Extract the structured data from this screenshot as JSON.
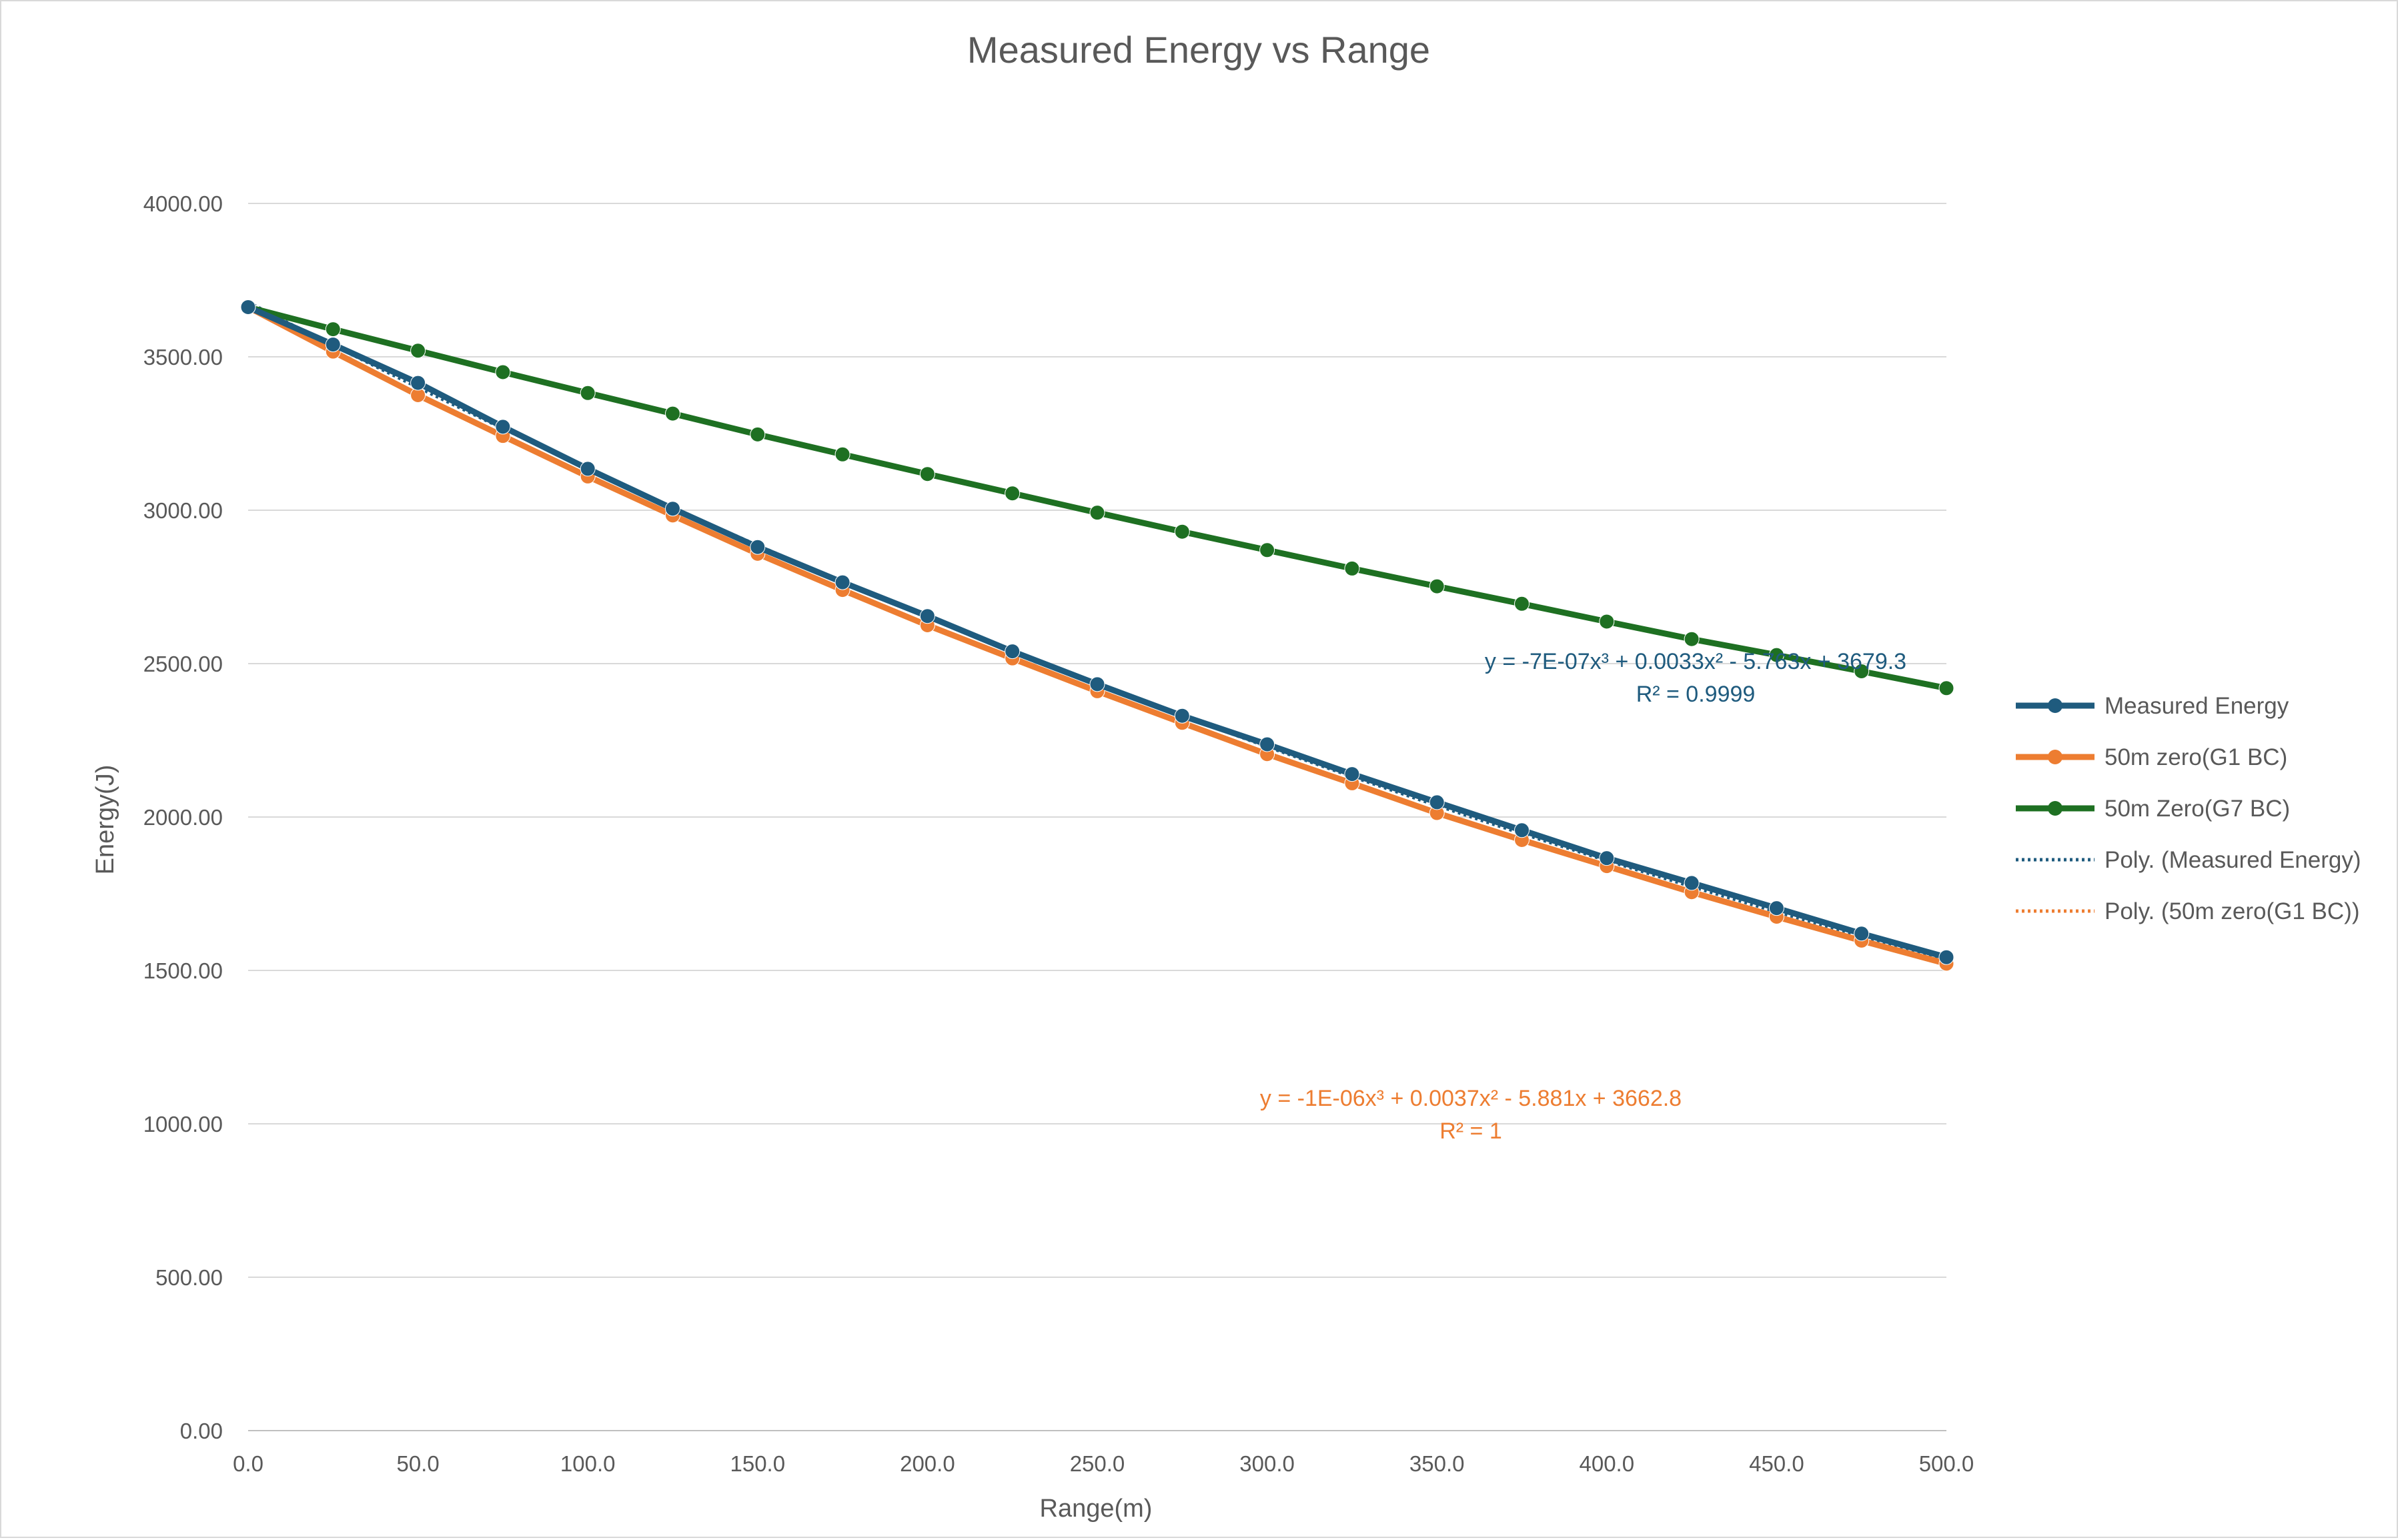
{
  "chart_data": {
    "type": "line",
    "title": "Measured Energy vs Range",
    "xlabel": "Range(m)",
    "ylabel": "Energy(J)",
    "xlim": [
      0,
      500
    ],
    "ylim": [
      0,
      4000
    ],
    "x_ticks": [
      "0.0",
      "50.0",
      "100.0",
      "150.0",
      "200.0",
      "250.0",
      "300.0",
      "350.0",
      "400.0",
      "450.0",
      "500.0"
    ],
    "y_ticks": [
      "0.00",
      "500.00",
      "1000.00",
      "1500.00",
      "2000.00",
      "2500.00",
      "3000.00",
      "3500.00",
      "4000.00"
    ],
    "grid": true,
    "legend_position": "right",
    "x": [
      0,
      25,
      50,
      75,
      100,
      125,
      150,
      175,
      200,
      225,
      250,
      275,
      300,
      325,
      350,
      375,
      400,
      425,
      450,
      475,
      500
    ],
    "series": [
      {
        "name": "Measured Energy",
        "color": "#1f5b7e",
        "values": [
          3662,
          3540,
          3415,
          3272,
          3135,
          3005,
          2880,
          2765,
          2655,
          2540,
          2433,
          2330,
          2237,
          2140,
          2048,
          1957,
          1866,
          1785,
          1703,
          1620,
          1543
        ]
      },
      {
        "name": "50m zero(G1 BC)",
        "color": "#ed7d31",
        "values": [
          3662,
          3517,
          3375,
          3242,
          3110,
          2983,
          2858,
          2740,
          2625,
          2517,
          2410,
          2307,
          2205,
          2110,
          2013,
          1925,
          1840,
          1755,
          1675,
          1597,
          1522
        ]
      },
      {
        "name": "50m Zero(G7 BC)",
        "color": "#1e7022",
        "values": [
          3662,
          3590,
          3520,
          3450,
          3382,
          3315,
          3247,
          3182,
          3118,
          3055,
          2992,
          2930,
          2870,
          2810,
          2752,
          2695,
          2637,
          2580,
          2528,
          2475,
          2420
        ]
      }
    ],
    "trendlines": [
      {
        "name": "Poly. (Measured Energy)",
        "color": "#1f5b7e",
        "coef": [
          3679.3,
          -5.763,
          0.0033,
          -7e-07
        ],
        "equation": "y = -7E-07x³ + 0.0033x² - 5.763x + 3679.3",
        "r2": "R² = 0.9999"
      },
      {
        "name": "Poly. (50m zero(G1 BC))",
        "color": "#ed7d31",
        "coef": [
          3662.8,
          -5.881,
          0.0037,
          -1e-06
        ],
        "equation": "y = -1E-06x³ + 0.0037x² - 5.881x + 3662.8",
        "r2": "R² = 1"
      }
    ]
  }
}
